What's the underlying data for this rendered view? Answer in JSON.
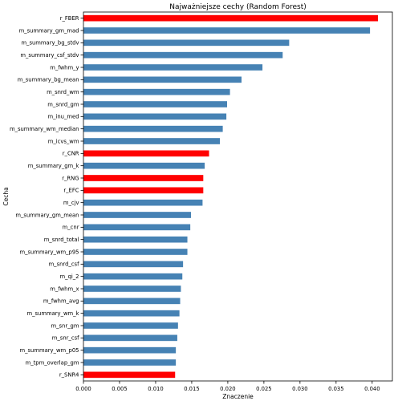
{
  "chart_data": {
    "type": "bar",
    "orientation": "horizontal",
    "title": "Najważniejsze cechy (Random Forest)",
    "xlabel": "Znaczenie",
    "ylabel": "Cecha",
    "xlim": [
      0,
      0.0428
    ],
    "xticks": [
      0.0,
      0.005,
      0.01,
      0.015,
      0.02,
      0.025,
      0.03,
      0.035,
      0.04
    ],
    "xtick_labels": [
      "0.000",
      "0.005",
      "0.010",
      "0.015",
      "0.020",
      "0.025",
      "0.030",
      "0.035",
      "0.040"
    ],
    "grid": false,
    "colors": {
      "default": "#4682b4",
      "highlight": "#ff0000"
    },
    "categories": [
      "r_FBER",
      "m_summary_gm_mad",
      "m_summary_bg_stdv",
      "m_summary_csf_stdv",
      "m_fwhm_y",
      "m_summary_bg_mean",
      "m_snrd_wm",
      "m_snrd_gm",
      "m_inu_med",
      "m_summary_wm_median",
      "m_icvs_wm",
      "r_CNR",
      "m_summary_gm_k",
      "r_RNG",
      "r_EFC",
      "m_cjv",
      "m_summary_gm_mean",
      "m_cnr",
      "m_snrd_total",
      "m_summary_wm_p95",
      "m_snrd_csf",
      "m_qi_2",
      "m_fwhm_x",
      "m_fwhm_avg",
      "m_summary_wm_k",
      "m_snr_gm",
      "m_snr_csf",
      "m_summary_wm_p05",
      "m_tpm_overlap_gm",
      "r_SNR4"
    ],
    "values": [
      0.0408,
      0.0397,
      0.0285,
      0.0276,
      0.0248,
      0.0219,
      0.0203,
      0.0199,
      0.0198,
      0.0193,
      0.0189,
      0.0174,
      0.0168,
      0.0166,
      0.0166,
      0.0165,
      0.0149,
      0.0148,
      0.0144,
      0.0144,
      0.0138,
      0.0137,
      0.0135,
      0.0134,
      0.0133,
      0.0131,
      0.013,
      0.0128,
      0.0128,
      0.0127
    ],
    "highlighted": [
      true,
      false,
      false,
      false,
      false,
      false,
      false,
      false,
      false,
      false,
      false,
      true,
      false,
      true,
      true,
      false,
      false,
      false,
      false,
      false,
      false,
      false,
      false,
      false,
      false,
      false,
      false,
      false,
      false,
      true
    ]
  }
}
